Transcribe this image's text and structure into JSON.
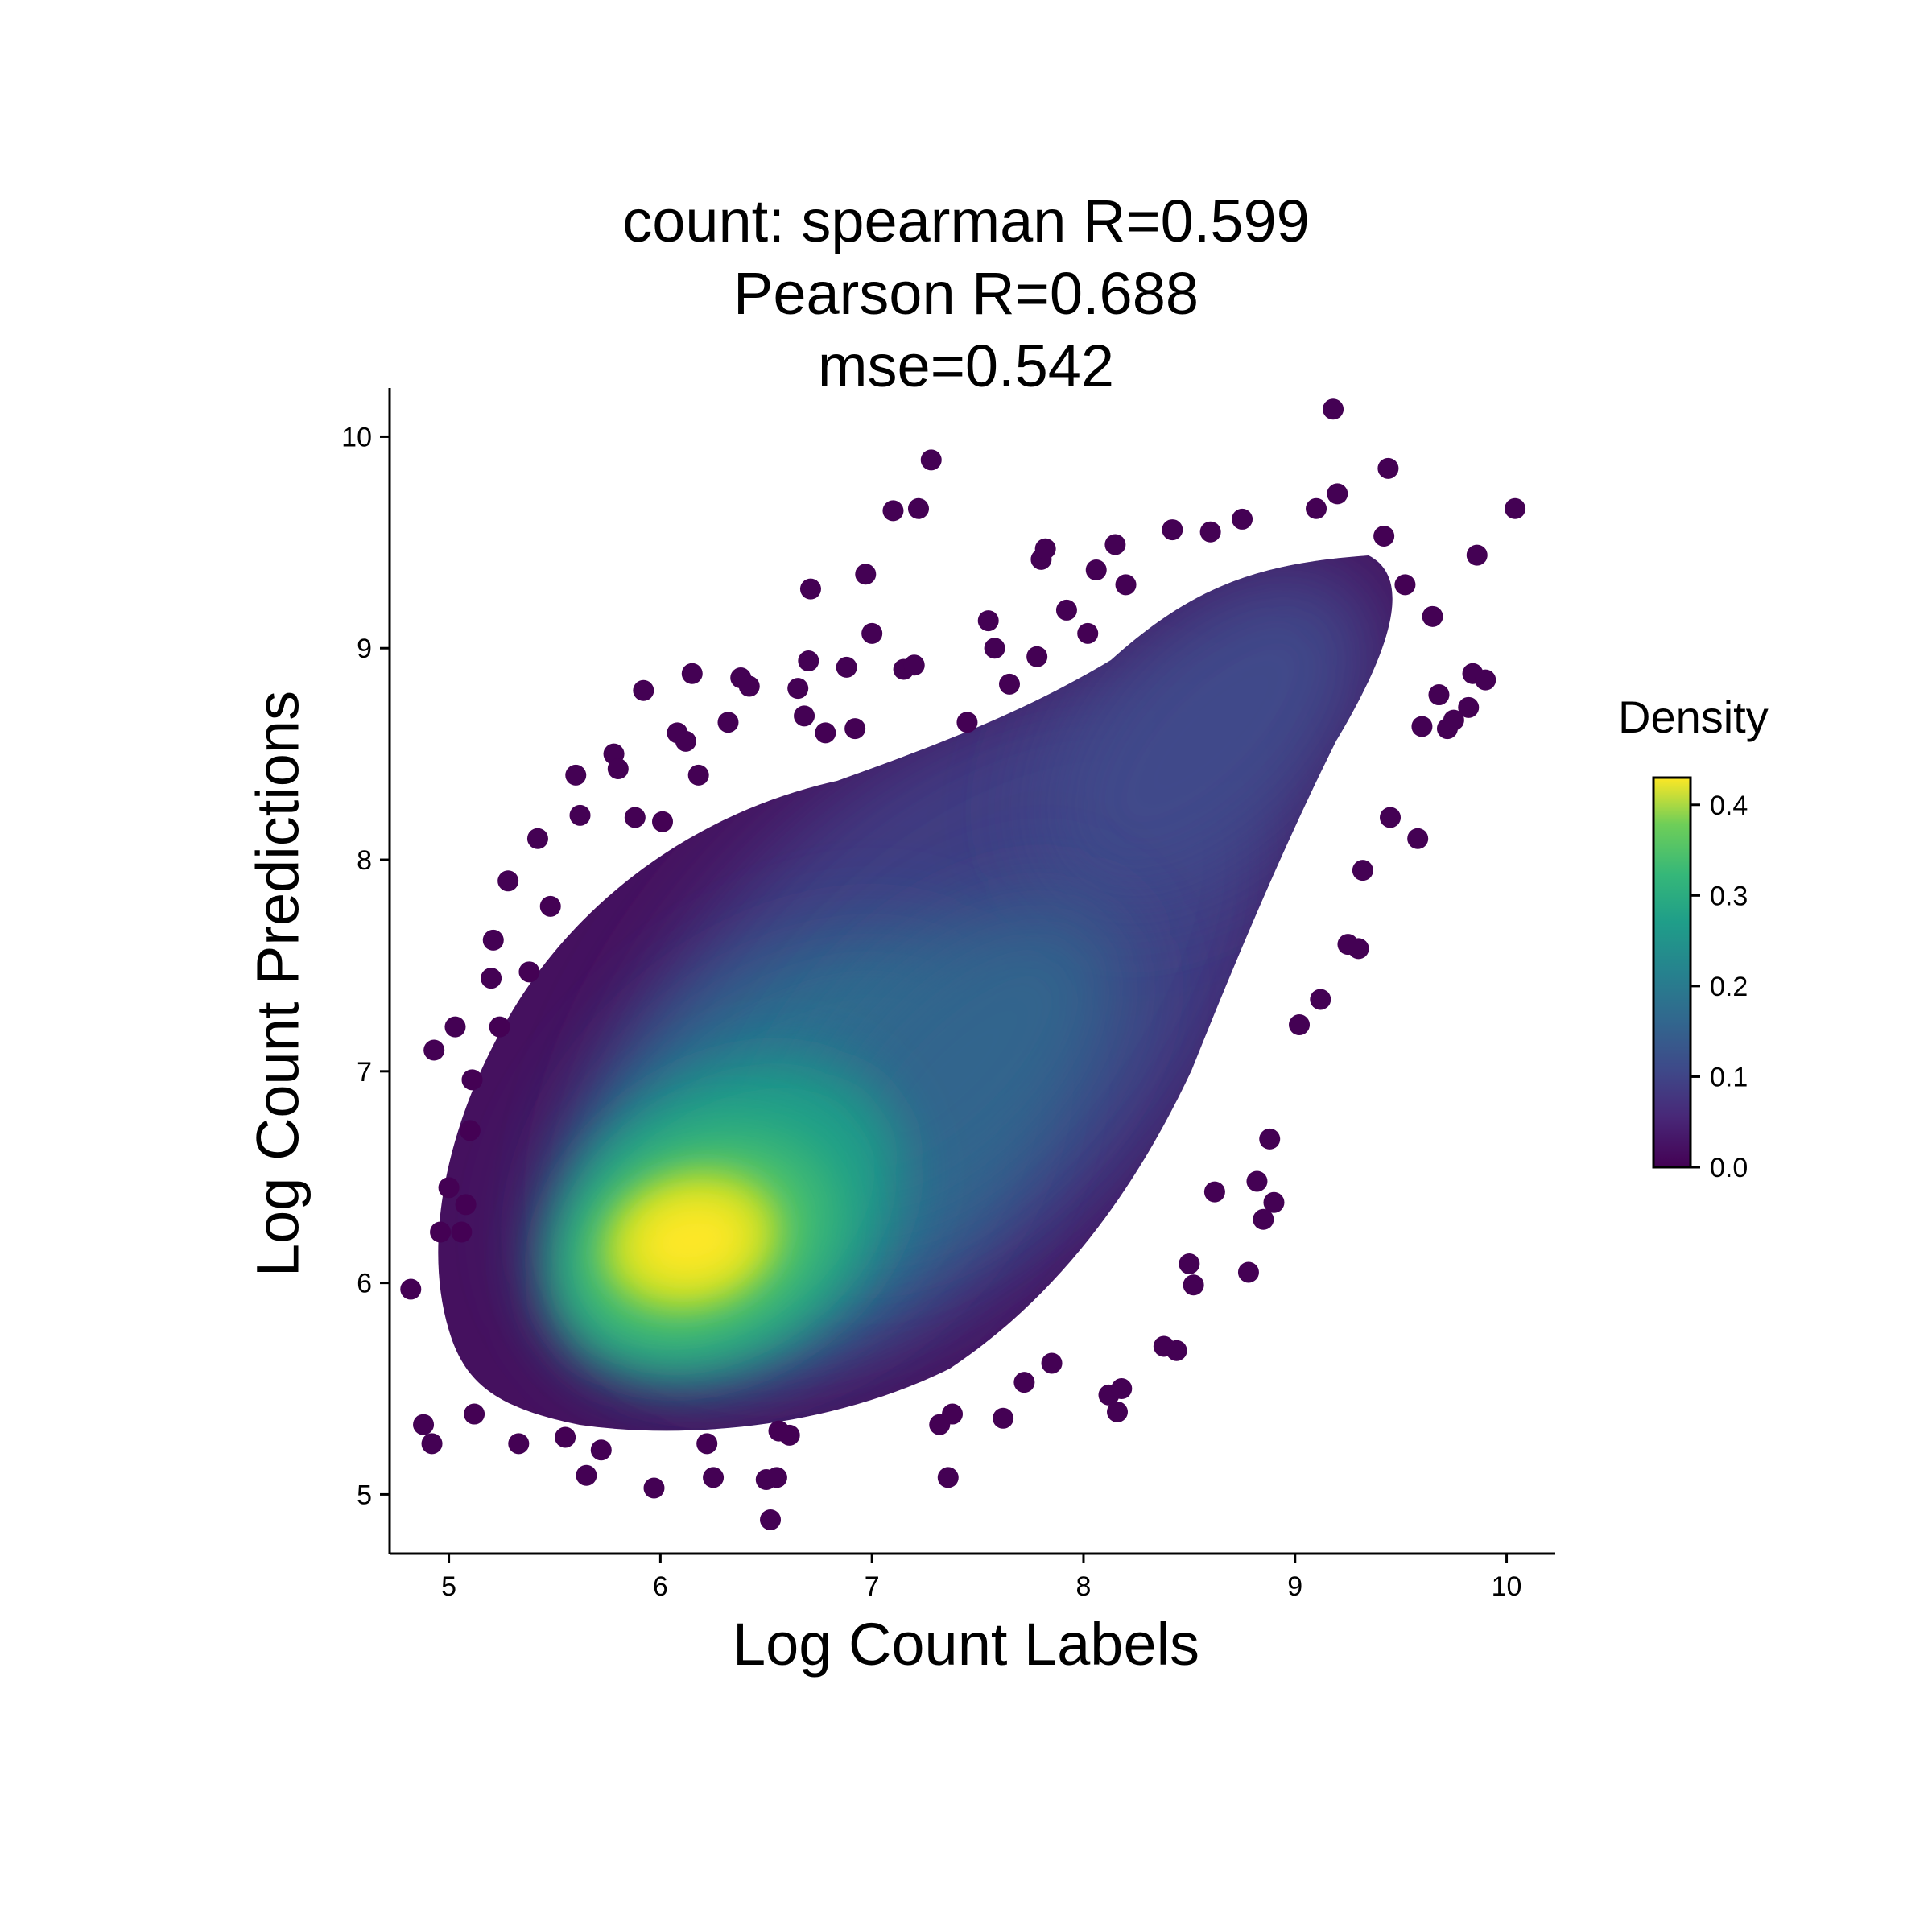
{
  "title_lines": [
    "count: spearman R=0.599",
    "Pearson R=0.688",
    "mse=0.542"
  ],
  "chart_data": {
    "type": "scatter",
    "title": "count: spearman R=0.599\nPearson R=0.688\nmse=0.542",
    "xlabel": "Log Count Labels",
    "ylabel": "Log Count Predictions",
    "xlim": [
      4.72,
      10.23
    ],
    "ylim": [
      4.72,
      10.23
    ],
    "xticks": [
      5,
      6,
      7,
      8,
      9,
      10
    ],
    "yticks": [
      5,
      6,
      7,
      8,
      9,
      10
    ],
    "grid": false,
    "colorbar": {
      "label": "Density",
      "range": [
        0.0,
        0.43
      ],
      "ticks": [
        0.0,
        0.1,
        0.2,
        0.3,
        0.4
      ],
      "ticklabels": [
        "0.0",
        "0.1",
        "0.2",
        "0.3",
        "0.4"
      ],
      "colormap": "viridis"
    },
    "density_peak": {
      "x": 6.15,
      "y": 6.2,
      "density": 0.43
    },
    "points": [
      [
        4.82,
        5.97
      ],
      [
        4.88,
        5.33
      ],
      [
        4.92,
        5.24
      ],
      [
        4.93,
        7.1
      ],
      [
        4.96,
        6.24
      ],
      [
        5.0,
        6.45
      ],
      [
        5.03,
        7.21
      ],
      [
        5.06,
        6.24
      ],
      [
        5.08,
        6.37
      ],
      [
        5.1,
        6.72
      ],
      [
        5.11,
        6.96
      ],
      [
        5.12,
        5.38
      ],
      [
        5.2,
        7.44
      ],
      [
        5.21,
        7.62
      ],
      [
        5.24,
        7.21
      ],
      [
        5.28,
        7.9
      ],
      [
        5.33,
        5.24
      ],
      [
        5.38,
        7.47
      ],
      [
        5.42,
        8.1
      ],
      [
        5.48,
        7.78
      ],
      [
        5.55,
        5.27
      ],
      [
        5.6,
        8.4
      ],
      [
        5.62,
        8.21
      ],
      [
        5.65,
        5.09
      ],
      [
        5.72,
        5.21
      ],
      [
        5.78,
        8.5
      ],
      [
        5.8,
        8.43
      ],
      [
        5.88,
        8.2
      ],
      [
        5.92,
        8.8
      ],
      [
        5.97,
        5.03
      ],
      [
        6.01,
        8.18
      ],
      [
        6.08,
        8.6
      ],
      [
        6.12,
        8.56
      ],
      [
        6.15,
        8.88
      ],
      [
        6.18,
        8.4
      ],
      [
        6.22,
        5.24
      ],
      [
        6.25,
        5.08
      ],
      [
        6.32,
        8.65
      ],
      [
        6.38,
        8.86
      ],
      [
        6.42,
        8.82
      ],
      [
        6.5,
        5.07
      ],
      [
        6.52,
        4.88
      ],
      [
        6.55,
        5.08
      ],
      [
        6.56,
        5.3
      ],
      [
        6.61,
        5.28
      ],
      [
        6.65,
        8.81
      ],
      [
        6.68,
        8.68
      ],
      [
        6.7,
        8.94
      ],
      [
        6.71,
        9.28
      ],
      [
        6.78,
        8.6
      ],
      [
        6.88,
        8.91
      ],
      [
        6.92,
        8.62
      ],
      [
        6.97,
        9.35
      ],
      [
        7.0,
        9.07
      ],
      [
        7.1,
        9.65
      ],
      [
        7.15,
        8.9
      ],
      [
        7.2,
        8.92
      ],
      [
        7.22,
        9.66
      ],
      [
        7.28,
        9.89
      ],
      [
        7.32,
        5.33
      ],
      [
        7.36,
        5.08
      ],
      [
        7.38,
        5.38
      ],
      [
        7.45,
        8.65
      ],
      [
        7.55,
        9.13
      ],
      [
        7.58,
        9.0
      ],
      [
        7.62,
        5.36
      ],
      [
        7.65,
        8.83
      ],
      [
        7.72,
        5.53
      ],
      [
        7.78,
        8.96
      ],
      [
        7.8,
        9.42
      ],
      [
        7.82,
        9.47
      ],
      [
        7.85,
        5.62
      ],
      [
        7.92,
        9.18
      ],
      [
        8.02,
        9.07
      ],
      [
        8.06,
        9.37
      ],
      [
        8.12,
        5.47
      ],
      [
        8.15,
        9.49
      ],
      [
        8.16,
        5.39
      ],
      [
        8.18,
        5.5
      ],
      [
        8.2,
        9.3
      ],
      [
        8.38,
        5.7
      ],
      [
        8.42,
        9.56
      ],
      [
        8.44,
        5.68
      ],
      [
        8.5,
        6.09
      ],
      [
        8.52,
        5.99
      ],
      [
        8.6,
        9.55
      ],
      [
        8.62,
        6.43
      ],
      [
        8.75,
        9.61
      ],
      [
        8.78,
        6.05
      ],
      [
        8.82,
        6.48
      ],
      [
        8.85,
        6.3
      ],
      [
        8.88,
        6.68
      ],
      [
        8.9,
        6.38
      ],
      [
        9.02,
        7.22
      ],
      [
        9.1,
        9.66
      ],
      [
        9.12,
        7.34
      ],
      [
        9.18,
        10.13
      ],
      [
        9.2,
        9.73
      ],
      [
        9.25,
        7.6
      ],
      [
        9.3,
        7.58
      ],
      [
        9.32,
        7.95
      ],
      [
        9.42,
        9.53
      ],
      [
        9.44,
        9.85
      ],
      [
        9.45,
        8.2
      ],
      [
        9.52,
        9.3
      ],
      [
        9.58,
        8.1
      ],
      [
        9.6,
        8.63
      ],
      [
        9.65,
        9.15
      ],
      [
        9.68,
        8.78
      ],
      [
        9.72,
        8.62
      ],
      [
        9.75,
        8.66
      ],
      [
        9.82,
        8.72
      ],
      [
        9.84,
        8.88
      ],
      [
        9.86,
        9.44
      ],
      [
        9.9,
        8.85
      ],
      [
        10.04,
        9.66
      ]
    ]
  }
}
